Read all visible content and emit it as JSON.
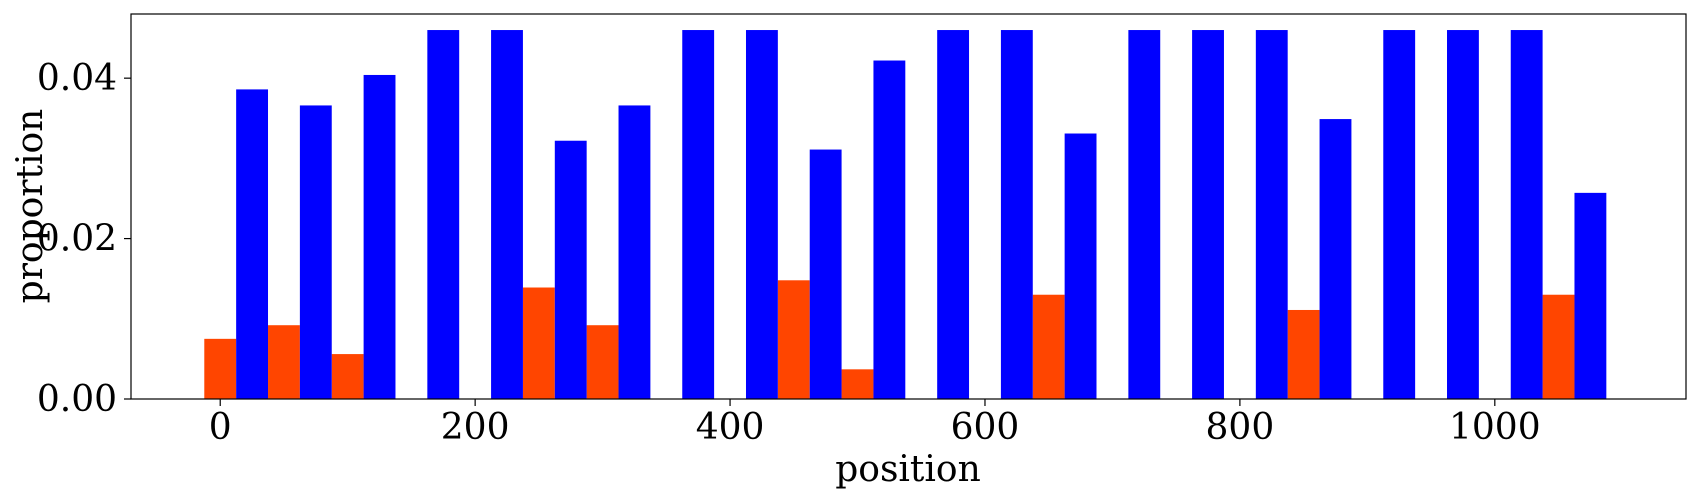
{
  "chart_data": {
    "type": "bar",
    "xlabel": "position",
    "ylabel": "proportion",
    "xlim": [
      -70,
      1150
    ],
    "ylim": [
      0,
      0.048
    ],
    "xticks": [
      0,
      200,
      400,
      600,
      800,
      1000
    ],
    "xtick_labels": [
      "0",
      "200",
      "400",
      "600",
      "800",
      "1000"
    ],
    "yticks": [
      0,
      0.02,
      0.04
    ],
    "ytick_labels": [
      "0.00",
      "0.02",
      "0.04"
    ],
    "bar_width": 25,
    "grid": false,
    "series": [
      {
        "color": "#ff4500",
        "x": [
          0,
          50,
          100,
          150,
          200,
          250,
          300,
          350,
          400,
          450,
          500,
          550,
          600,
          650,
          700,
          750,
          800,
          850,
          900,
          950,
          1000,
          1050
        ],
        "values": [
          0.0075,
          0.0092,
          0.0056,
          0,
          0,
          0.0139,
          0.0092,
          0,
          0,
          0.0148,
          0.0037,
          0,
          0,
          0.013,
          0,
          0,
          0,
          0.0111,
          0,
          0,
          0,
          0.013
        ]
      },
      {
        "color": "#0000ff",
        "x": [
          25,
          75,
          125,
          175,
          225,
          275,
          325,
          375,
          425,
          475,
          525,
          575,
          625,
          675,
          725,
          775,
          825,
          875,
          925,
          975,
          1025,
          1075
        ],
        "values": [
          0.0386,
          0.0366,
          0.0404,
          0.046,
          0.046,
          0.0322,
          0.0366,
          0.046,
          0.046,
          0.0311,
          0.0422,
          0.046,
          0.046,
          0.0331,
          0.046,
          0.046,
          0.046,
          0.0349,
          0.046,
          0.046,
          0.046,
          0.0257
        ]
      }
    ]
  }
}
